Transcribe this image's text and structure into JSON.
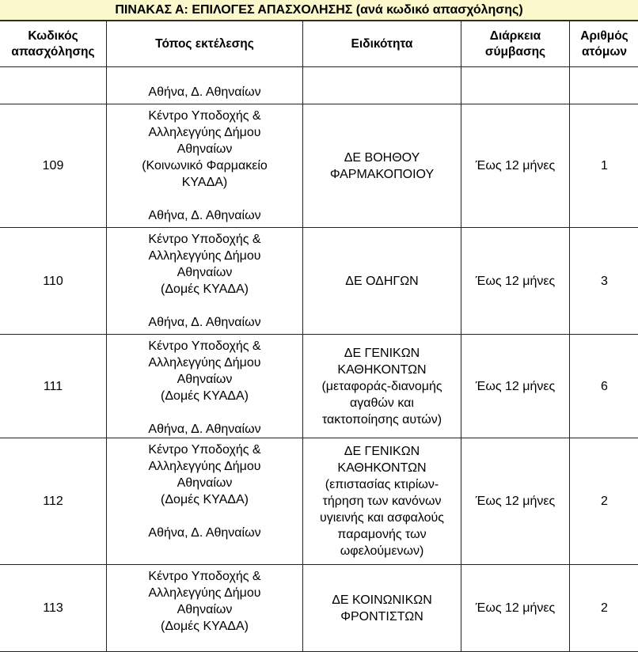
{
  "title": "ΠΙΝΑΚΑΣ Α: ΕΠΙΛΟΓΕΣ ΑΠΑΣΧΟΛΗΣΗΣ (ανά κωδικό απασχόλησης)",
  "headers": [
    "Κωδικός\nαπασχόλησης",
    "Τόπος εκτέλεσης",
    "Ειδικότητα",
    "Διάρκεια\nσύμβασης",
    "Αριθμός\nατόμων"
  ],
  "rows": [
    {
      "code": "",
      "place": "\nΑθήνα, Δ. Αθηναίων",
      "specialty": "",
      "duration": "",
      "count": ""
    },
    {
      "code": "109",
      "place": "Κέντρο Υποδοχής &\nΑλληλεγγύης Δήμου\nΑθηναίων\n(Κοινωνικό Φαρμακείο\nΚΥΑΔΑ)\n\nΑθήνα, Δ. Αθηναίων",
      "specialty": "ΔΕ ΒΟΗΘΟΥ\nΦΑΡΜΑΚΟΠΟΙΟΥ",
      "duration": "Έως 12 μήνες",
      "count": "1"
    },
    {
      "code": "110",
      "place": "Κέντρο Υποδοχής &\nΑλληλεγγύης Δήμου\nΑθηναίων\n(Δομές  ΚΥΑΔΑ)\n\nΑθήνα, Δ. Αθηναίων",
      "specialty": "ΔΕ ΟΔΗΓΩΝ",
      "duration": "Έως 12 μήνες",
      "count": "3"
    },
    {
      "code": "111",
      "place": "Κέντρο Υποδοχής &\nΑλληλεγγύης Δήμου\nΑθηναίων\n(Δομές  ΚΥΑΔΑ)\n\nΑθήνα, Δ. Αθηναίων",
      "specialty": "ΔΕ ΓΕΝΙΚΩΝ\nΚΑΘΗΚΟΝΤΩΝ\n(μεταφοράς-διανομής\nαγαθών και\nτακτοποίησης αυτών)",
      "duration": "Έως 12 μήνες",
      "count": "6"
    },
    {
      "code": "112",
      "place": "Κέντρο Υποδοχής &\nΑλληλεγγύης Δήμου\nΑθηναίων\n(Δομές  ΚΥΑΔΑ)\n\nΑθήνα, Δ. Αθηναίων",
      "specialty": "ΔΕ ΓΕΝΙΚΩΝ\nΚΑΘΗΚΟΝΤΩΝ\n(επιστασίας κτιρίων-\nτήρηση των κανόνων\nυγιεινής και ασφαλούς\nπαραμονής των\nωφελούμενων)",
      "duration": "Έως 12 μήνες",
      "count": "2"
    },
    {
      "code": "113",
      "place": "Κέντρο Υποδοχής &\nΑλληλεγγύης Δήμου\nΑθηναίων\n(Δομές  ΚΥΑΔΑ)",
      "specialty": "ΔΕ ΚΟΙΝΩΝΙΚΩΝ\nΦΡΟΝΤΙΣΤΩΝ",
      "duration": "Έως 12 μήνες",
      "count": "2"
    }
  ]
}
